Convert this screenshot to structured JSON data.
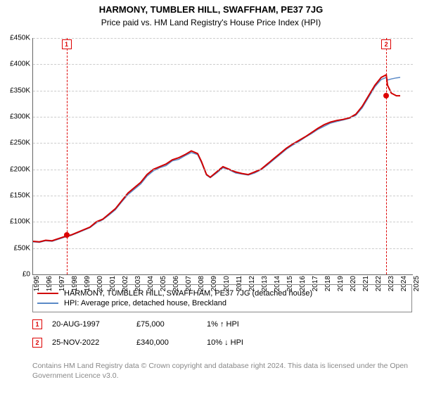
{
  "title": "HARMONY, TUMBLER HILL, SWAFFHAM, PE37 7JG",
  "subtitle": "Price paid vs. HM Land Registry's House Price Index (HPI)",
  "chart": {
    "type": "line",
    "background_color": "#ffffff",
    "grid_color": "#cccccc",
    "axis_color": "#666666",
    "xlim": [
      1995,
      2025
    ],
    "ylim": [
      0,
      450000
    ],
    "ytick_step": 50000,
    "ytick_labels": [
      "£0",
      "£50K",
      "£100K",
      "£150K",
      "£200K",
      "£250K",
      "£300K",
      "£350K",
      "£400K",
      "£450K"
    ],
    "xtick_step": 1,
    "xtick_labels": [
      "1995",
      "1996",
      "1997",
      "1998",
      "1999",
      "2000",
      "2001",
      "2002",
      "2003",
      "2004",
      "2005",
      "2006",
      "2007",
      "2008",
      "2009",
      "2010",
      "2011",
      "2012",
      "2013",
      "2014",
      "2015",
      "2016",
      "2017",
      "2018",
      "2019",
      "2020",
      "2021",
      "2022",
      "2023",
      "2024",
      "2025"
    ],
    "series": [
      {
        "name": "HARMONY, TUMBLER HILL, SWAFFHAM, PE37 7JG (detached house)",
        "color": "#d00000",
        "width": 2,
        "x": [
          1995,
          1995.5,
          1996,
          1996.5,
          1997,
          1997.5,
          1998,
          1998.5,
          1999,
          1999.5,
          2000,
          2000.5,
          2001,
          2001.5,
          2002,
          2002.5,
          2003,
          2003.5,
          2004,
          2004.5,
          2005,
          2005.5,
          2006,
          2006.5,
          2007,
          2007.5,
          2008,
          2008.3,
          2008.7,
          2009,
          2009.5,
          2010,
          2010.5,
          2011,
          2011.5,
          2012,
          2012.5,
          2013,
          2013.5,
          2014,
          2014.5,
          2015,
          2015.5,
          2016,
          2016.5,
          2017,
          2017.5,
          2018,
          2018.5,
          2019,
          2019.5,
          2020,
          2020.5,
          2021,
          2021.5,
          2022,
          2022.5,
          2022.9,
          2023,
          2023.3,
          2023.7,
          2024
        ],
        "y": [
          63000,
          62000,
          65000,
          64000,
          68000,
          72000,
          75000,
          80000,
          85000,
          90000,
          100000,
          105000,
          115000,
          125000,
          140000,
          155000,
          165000,
          175000,
          190000,
          200000,
          205000,
          210000,
          218000,
          222000,
          228000,
          235000,
          230000,
          215000,
          190000,
          185000,
          195000,
          205000,
          200000,
          195000,
          192000,
          190000,
          195000,
          200000,
          210000,
          220000,
          230000,
          240000,
          248000,
          255000,
          262000,
          270000,
          278000,
          285000,
          290000,
          293000,
          295000,
          298000,
          305000,
          320000,
          340000,
          360000,
          375000,
          380000,
          360000,
          345000,
          340000,
          340000
        ]
      },
      {
        "name": "HPI: Average price, detached house, Breckland",
        "color": "#5b8ac7",
        "width": 1.5,
        "x": [
          1995,
          1995.5,
          1996,
          1996.5,
          1997,
          1997.5,
          1998,
          1998.5,
          1999,
          1999.5,
          2000,
          2000.5,
          2001,
          2001.5,
          2002,
          2002.5,
          2003,
          2003.5,
          2004,
          2004.5,
          2005,
          2005.5,
          2006,
          2006.5,
          2007,
          2007.5,
          2008,
          2008.3,
          2008.7,
          2009,
          2009.5,
          2010,
          2010.5,
          2011,
          2011.5,
          2012,
          2012.5,
          2013,
          2013.5,
          2014,
          2014.5,
          2015,
          2015.5,
          2016,
          2016.5,
          2017,
          2017.5,
          2018,
          2018.5,
          2019,
          2019.5,
          2020,
          2020.5,
          2021,
          2021.5,
          2022,
          2022.5,
          2022.9,
          2023,
          2023.3,
          2023.7,
          2024
        ],
        "y": [
          62000,
          61000,
          64000,
          63000,
          67000,
          71000,
          74000,
          79000,
          84000,
          89000,
          98000,
          104000,
          113000,
          123000,
          138000,
          152000,
          162000,
          172000,
          187000,
          197000,
          203000,
          207000,
          216000,
          219000,
          226000,
          232000,
          228000,
          213000,
          189000,
          184000,
          193000,
          203000,
          199000,
          193000,
          191000,
          189000,
          193000,
          199000,
          208000,
          218000,
          228000,
          238000,
          246000,
          253000,
          261000,
          268000,
          276000,
          282000,
          288000,
          291000,
          294000,
          297000,
          303000,
          317000,
          337000,
          357000,
          371000,
          375000,
          370000,
          372000,
          374000,
          375000
        ]
      }
    ],
    "markers": [
      {
        "id": "1",
        "x": 1997.64,
        "y": 75000
      },
      {
        "id": "2",
        "x": 2022.9,
        "y": 340000
      }
    ]
  },
  "legend_series": [
    {
      "color": "#d00000",
      "label": "HARMONY, TUMBLER HILL, SWAFFHAM, PE37 7JG (detached house)"
    },
    {
      "color": "#5b8ac7",
      "label": "HPI: Average price, detached house, Breckland"
    }
  ],
  "sales": [
    {
      "marker": "1",
      "date": "20-AUG-1997",
      "price": "£75,000",
      "hpi": "1% ↑ HPI"
    },
    {
      "marker": "2",
      "date": "25-NOV-2022",
      "price": "£340,000",
      "hpi": "10% ↓ HPI"
    }
  ],
  "footer": "Contains HM Land Registry data © Crown copyright and database right 2024. This data is licensed under the Open Government Licence v3.0."
}
